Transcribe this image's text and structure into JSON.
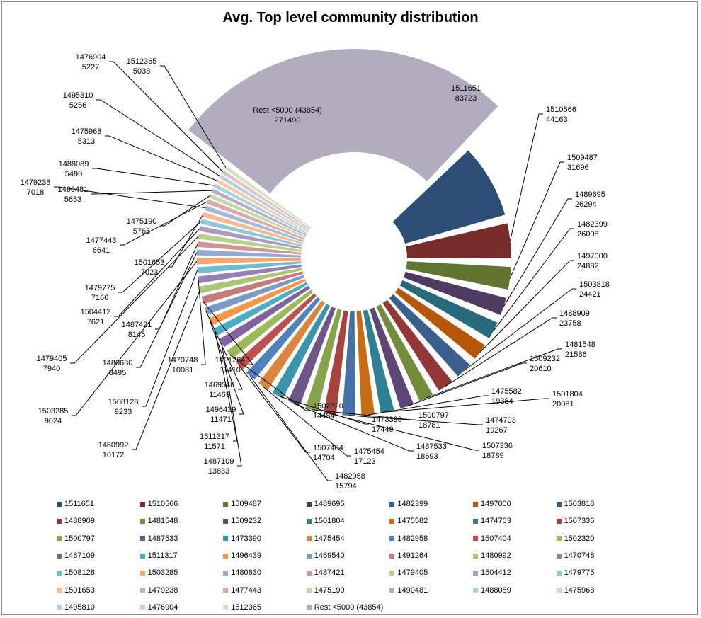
{
  "chart_data": {
    "type": "pie",
    "title": "Avg. Top level community distribution",
    "legend_position": "bottom",
    "slices": [
      {
        "label": "1511651",
        "value": 83723,
        "color": "#2c4d75"
      },
      {
        "label": "1510566",
        "value": 44163,
        "color": "#772c2a"
      },
      {
        "label": "1509487",
        "value": 31696,
        "color": "#5f7530"
      },
      {
        "label": "1489695",
        "value": 26294,
        "color": "#4d3b62"
      },
      {
        "label": "1482399",
        "value": 26008,
        "color": "#276a7c"
      },
      {
        "label": "1497000",
        "value": 24882,
        "color": "#b65708"
      },
      {
        "label": "1503818",
        "value": 24421,
        "color": "#3a5f8f"
      },
      {
        "label": "1488909",
        "value": 23758,
        "color": "#913735"
      },
      {
        "label": "1481548",
        "value": 21586,
        "color": "#728c3c"
      },
      {
        "label": "1509232",
        "value": 20610,
        "color": "#5c4776"
      },
      {
        "label": "1501804",
        "value": 20081,
        "color": "#2f7f94"
      },
      {
        "label": "1475582",
        "value": 19384,
        "color": "#c96b15"
      },
      {
        "label": "1474703",
        "value": 19267,
        "color": "#4671a8"
      },
      {
        "label": "1507336",
        "value": 18789,
        "color": "#a94340"
      },
      {
        "label": "1500797",
        "value": 18781,
        "color": "#87a44a"
      },
      {
        "label": "1487533",
        "value": 18693,
        "color": "#6d568a"
      },
      {
        "label": "1473390",
        "value": 17449,
        "color": "#3995ad"
      },
      {
        "label": "1475454",
        "value": 17123,
        "color": "#db843d"
      },
      {
        "label": "1482958",
        "value": 15794,
        "color": "#4f81bd"
      },
      {
        "label": "1507404",
        "value": 14704,
        "color": "#c0504d"
      },
      {
        "label": "1502320",
        "value": 14484,
        "color": "#9bbb59"
      },
      {
        "label": "1487109",
        "value": 13833,
        "color": "#8064a2"
      },
      {
        "label": "1511317",
        "value": 11571,
        "color": "#4bacc6"
      },
      {
        "label": "1496439",
        "value": 11471,
        "color": "#f79646"
      },
      {
        "label": "1469540",
        "value": 11463,
        "color": "#7b9ac6"
      },
      {
        "label": "1491264",
        "value": 11410,
        "color": "#c77b79"
      },
      {
        "label": "1480992",
        "value": 10172,
        "color": "#a9c575"
      },
      {
        "label": "1470748",
        "value": 10081,
        "color": "#9680b3"
      },
      {
        "label": "1508128",
        "value": 9233,
        "color": "#6fbcd1"
      },
      {
        "label": "1503285",
        "value": 9024,
        "color": "#f7a767"
      },
      {
        "label": "1480630",
        "value": 8495,
        "color": "#94aad0"
      },
      {
        "label": "1487421",
        "value": 8145,
        "color": "#d19796"
      },
      {
        "label": "1479405",
        "value": 7940,
        "color": "#b8d18c"
      },
      {
        "label": "1504412",
        "value": 7621,
        "color": "#a99bc2"
      },
      {
        "label": "1479775",
        "value": 7166,
        "color": "#8ec8d9"
      },
      {
        "label": "1501653",
        "value": 7023,
        "color": "#f8b98e"
      },
      {
        "label": "1479238",
        "value": 7018,
        "color": "#a8b9d8"
      },
      {
        "label": "1477443",
        "value": 6641,
        "color": "#d8aaa9"
      },
      {
        "label": "1475190",
        "value": 5765,
        "color": "#c5d9a7"
      },
      {
        "label": "1490481",
        "value": 5653,
        "color": "#b8accb"
      },
      {
        "label": "1488089",
        "value": 5490,
        "color": "#a9d3e0"
      },
      {
        "label": "1475968",
        "value": 5313,
        "color": "#f9c9a9"
      },
      {
        "label": "1495810",
        "value": 5256,
        "color": "#bccbe3"
      },
      {
        "label": "1476904",
        "value": 5227,
        "color": "#e3c2c1"
      },
      {
        "label": "1512365",
        "value": 5038,
        "color": "#d3e2bd"
      },
      {
        "label": "Rest <5000 (43854)",
        "value": 271490,
        "color": "#b1adbf"
      }
    ]
  }
}
